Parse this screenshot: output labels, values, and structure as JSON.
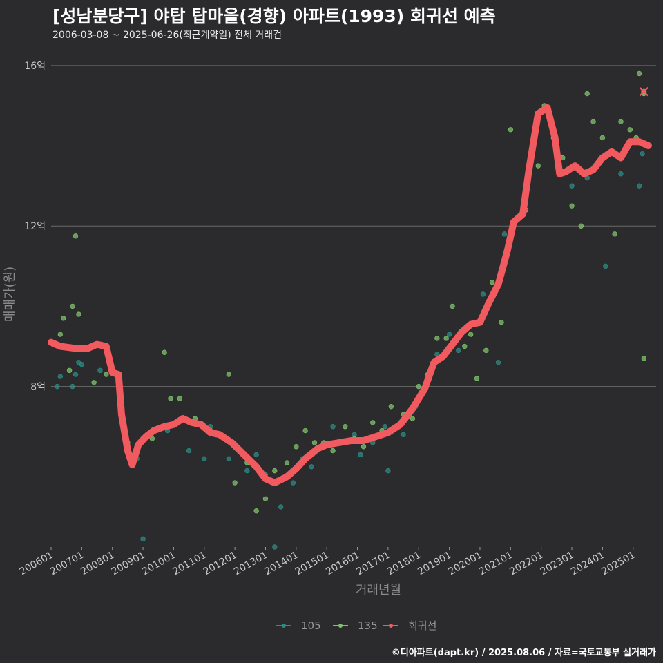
{
  "header": {
    "title": "[성남분당구] 야탑 탑마을(경향) 아파트(1993) 회귀선 예측",
    "subtitle": "2006-03-08 ~ 2025-06-26(최근계약일) 전체 거래건",
    "caption": "©디아파트(dapt.kr) / 2025.08.06 / 자료=국토교통부 실거래가"
  },
  "colors": {
    "background": "#2b2a2c",
    "grid": "#6b6b6b",
    "series_105": "#2f8a84",
    "series_135": "#7fc26b",
    "regression": "#f15a5f"
  },
  "chart_data": {
    "type": "scatter",
    "xlabel": "거래년월",
    "ylabel": "매매가(원)",
    "xlim": [
      2006.0,
      2025.75
    ],
    "ylim": [
      4.0,
      16.6
    ],
    "y_ticks": [
      {
        "value": 8,
        "label": "8억"
      },
      {
        "value": 12,
        "label": "12억"
      },
      {
        "value": 16,
        "label": "16억"
      }
    ],
    "x_ticks": [
      "200601",
      "200701",
      "200801",
      "200901",
      "201001",
      "201101",
      "201201",
      "201301",
      "201401",
      "201501",
      "201601",
      "201701",
      "201801",
      "201901",
      "202001",
      "202101",
      "202201",
      "202301",
      "202401",
      "202501"
    ],
    "legend": [
      {
        "name": "105",
        "type": "point-line"
      },
      {
        "name": "135",
        "type": "point-line"
      },
      {
        "name": "회귀선",
        "type": "point-line"
      }
    ],
    "series": [
      {
        "name": "105",
        "points": [
          [
            2006.2,
            8.0
          ],
          [
            2006.3,
            8.25
          ],
          [
            2006.5,
            9.0
          ],
          [
            2006.7,
            8.0
          ],
          [
            2006.8,
            8.3
          ],
          [
            2006.9,
            8.6
          ],
          [
            2007.0,
            8.55
          ],
          [
            2007.6,
            8.4
          ],
          [
            2008.5,
            6.4
          ],
          [
            2008.8,
            6.2
          ],
          [
            2009.0,
            4.2
          ],
          [
            2009.4,
            6.9
          ],
          [
            2009.8,
            6.9
          ],
          [
            2010.1,
            7.1
          ],
          [
            2010.5,
            6.4
          ],
          [
            2011.0,
            6.2
          ],
          [
            2011.2,
            7.0
          ],
          [
            2011.5,
            6.8
          ],
          [
            2011.8,
            6.2
          ],
          [
            2012.0,
            6.5
          ],
          [
            2012.4,
            5.9
          ],
          [
            2012.7,
            6.3
          ],
          [
            2013.0,
            5.8
          ],
          [
            2013.3,
            4.0
          ],
          [
            2013.5,
            5.0
          ],
          [
            2013.9,
            5.6
          ],
          [
            2014.2,
            6.2
          ],
          [
            2014.5,
            6.0
          ],
          [
            2014.9,
            6.5
          ],
          [
            2015.2,
            7.0
          ],
          [
            2015.5,
            6.6
          ],
          [
            2015.9,
            6.8
          ],
          [
            2016.1,
            6.3
          ],
          [
            2016.5,
            6.6
          ],
          [
            2016.9,
            7.0
          ],
          [
            2017.0,
            5.9
          ],
          [
            2017.5,
            6.8
          ],
          [
            2017.9,
            7.5
          ],
          [
            2018.3,
            8.3
          ],
          [
            2018.6,
            8.8
          ],
          [
            2019.0,
            9.3
          ],
          [
            2019.3,
            8.9
          ],
          [
            2019.8,
            9.6
          ],
          [
            2020.1,
            10.3
          ],
          [
            2020.6,
            8.6
          ],
          [
            2020.8,
            11.8
          ],
          [
            2021.3,
            12.2
          ],
          [
            2023.0,
            13.0
          ],
          [
            2023.5,
            13.2
          ],
          [
            2024.1,
            11.0
          ],
          [
            2024.6,
            13.3
          ],
          [
            2025.2,
            13.0
          ],
          [
            2025.3,
            13.8
          ]
        ]
      },
      {
        "name": "135",
        "points": [
          [
            2006.3,
            9.3
          ],
          [
            2006.4,
            9.7
          ],
          [
            2006.6,
            8.4
          ],
          [
            2006.7,
            10.0
          ],
          [
            2006.8,
            11.75
          ],
          [
            2006.9,
            9.8
          ],
          [
            2007.4,
            8.1
          ],
          [
            2007.8,
            8.3
          ],
          [
            2008.5,
            6.6
          ],
          [
            2009.0,
            6.7
          ],
          [
            2009.3,
            6.7
          ],
          [
            2009.7,
            8.85
          ],
          [
            2009.9,
            7.7
          ],
          [
            2010.2,
            7.7
          ],
          [
            2010.7,
            7.2
          ],
          [
            2011.2,
            6.9
          ],
          [
            2011.8,
            8.3
          ],
          [
            2012.0,
            5.6
          ],
          [
            2012.4,
            6.1
          ],
          [
            2012.7,
            4.9
          ],
          [
            2013.0,
            5.2
          ],
          [
            2013.3,
            5.9
          ],
          [
            2013.7,
            6.1
          ],
          [
            2014.0,
            6.5
          ],
          [
            2014.3,
            6.9
          ],
          [
            2014.6,
            6.6
          ],
          [
            2014.9,
            6.6
          ],
          [
            2015.2,
            6.4
          ],
          [
            2015.6,
            7.0
          ],
          [
            2015.9,
            6.7
          ],
          [
            2016.2,
            6.5
          ],
          [
            2016.5,
            7.1
          ],
          [
            2016.8,
            6.9
          ],
          [
            2017.1,
            7.5
          ],
          [
            2017.5,
            7.3
          ],
          [
            2017.8,
            7.2
          ],
          [
            2018.0,
            8.0
          ],
          [
            2018.3,
            8.3
          ],
          [
            2018.6,
            9.2
          ],
          [
            2018.9,
            9.2
          ],
          [
            2019.1,
            10.0
          ],
          [
            2019.5,
            9.0
          ],
          [
            2019.7,
            9.3
          ],
          [
            2019.9,
            8.2
          ],
          [
            2020.2,
            8.9
          ],
          [
            2020.4,
            10.6
          ],
          [
            2020.7,
            9.6
          ],
          [
            2021.0,
            14.4
          ],
          [
            2021.5,
            12.4
          ],
          [
            2021.9,
            13.5
          ],
          [
            2022.1,
            15.0
          ],
          [
            2022.4,
            14.2
          ],
          [
            2022.7,
            13.7
          ],
          [
            2023.0,
            12.5
          ],
          [
            2023.3,
            12.0
          ],
          [
            2023.5,
            15.3
          ],
          [
            2023.7,
            14.6
          ],
          [
            2024.0,
            14.2
          ],
          [
            2024.4,
            11.8
          ],
          [
            2024.6,
            14.6
          ],
          [
            2024.9,
            14.4
          ],
          [
            2025.1,
            14.2
          ],
          [
            2025.2,
            15.8
          ],
          [
            2025.35,
            15.3
          ],
          [
            2025.35,
            8.7
          ]
        ]
      }
    ],
    "regression": [
      [
        2006.0,
        9.1
      ],
      [
        2006.3,
        9.0
      ],
      [
        2006.8,
        8.95
      ],
      [
        2007.2,
        8.95
      ],
      [
        2007.5,
        9.05
      ],
      [
        2007.8,
        9.0
      ],
      [
        2008.0,
        8.35
      ],
      [
        2008.2,
        8.3
      ],
      [
        2008.3,
        7.3
      ],
      [
        2008.5,
        6.4
      ],
      [
        2008.65,
        6.05
      ],
      [
        2008.85,
        6.55
      ],
      [
        2009.1,
        6.75
      ],
      [
        2009.35,
        6.9
      ],
      [
        2009.7,
        7.0
      ],
      [
        2010.0,
        7.05
      ],
      [
        2010.3,
        7.2
      ],
      [
        2010.6,
        7.1
      ],
      [
        2010.9,
        7.05
      ],
      [
        2011.2,
        6.85
      ],
      [
        2011.5,
        6.8
      ],
      [
        2011.9,
        6.6
      ],
      [
        2012.3,
        6.3
      ],
      [
        2012.7,
        6.0
      ],
      [
        2013.0,
        5.7
      ],
      [
        2013.3,
        5.6
      ],
      [
        2013.7,
        5.75
      ],
      [
        2014.0,
        5.95
      ],
      [
        2014.3,
        6.2
      ],
      [
        2014.7,
        6.45
      ],
      [
        2015.0,
        6.55
      ],
      [
        2015.4,
        6.6
      ],
      [
        2015.8,
        6.65
      ],
      [
        2016.2,
        6.65
      ],
      [
        2016.6,
        6.75
      ],
      [
        2017.0,
        6.85
      ],
      [
        2017.4,
        7.05
      ],
      [
        2017.8,
        7.45
      ],
      [
        2018.2,
        7.95
      ],
      [
        2018.5,
        8.6
      ],
      [
        2018.8,
        8.75
      ],
      [
        2019.1,
        9.05
      ],
      [
        2019.4,
        9.35
      ],
      [
        2019.7,
        9.55
      ],
      [
        2020.0,
        9.6
      ],
      [
        2020.3,
        10.1
      ],
      [
        2020.6,
        10.55
      ],
      [
        2020.9,
        11.4
      ],
      [
        2021.1,
        12.1
      ],
      [
        2021.4,
        12.3
      ],
      [
        2021.6,
        13.4
      ],
      [
        2021.9,
        14.8
      ],
      [
        2022.2,
        14.95
      ],
      [
        2022.45,
        14.2
      ],
      [
        2022.6,
        13.3
      ],
      [
        2022.8,
        13.35
      ],
      [
        2023.1,
        13.5
      ],
      [
        2023.4,
        13.3
      ],
      [
        2023.7,
        13.4
      ],
      [
        2024.0,
        13.7
      ],
      [
        2024.3,
        13.85
      ],
      [
        2024.6,
        13.7
      ],
      [
        2024.9,
        14.1
      ],
      [
        2025.2,
        14.1
      ],
      [
        2025.5,
        14.0
      ]
    ],
    "prediction_marker": [
      2025.35,
      15.35
    ]
  }
}
